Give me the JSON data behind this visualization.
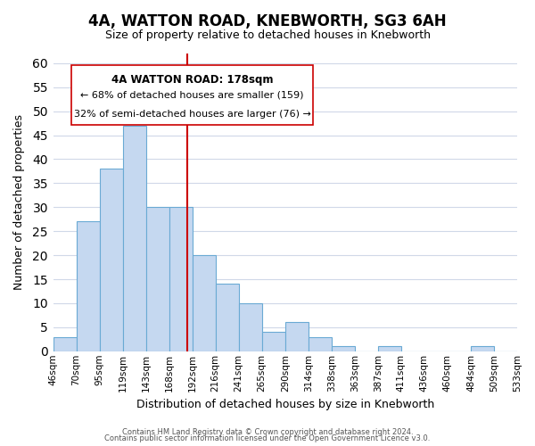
{
  "title": "4A, WATTON ROAD, KNEBWORTH, SG3 6AH",
  "subtitle": "Size of property relative to detached houses in Knebworth",
  "xlabel": "Distribution of detached houses by size in Knebworth",
  "ylabel": "Number of detached properties",
  "bar_color": "#c5d8f0",
  "bar_edge_color": "#6aaad4",
  "background_color": "#ffffff",
  "grid_color": "#d0d8e8",
  "tick_labels": [
    "46sqm",
    "70sqm",
    "95sqm",
    "119sqm",
    "143sqm",
    "168sqm",
    "192sqm",
    "216sqm",
    "241sqm",
    "265sqm",
    "290sqm",
    "314sqm",
    "338sqm",
    "363sqm",
    "387sqm",
    "411sqm",
    "436sqm",
    "460sqm",
    "484sqm",
    "509sqm",
    "533sqm"
  ],
  "values": [
    3,
    27,
    38,
    47,
    30,
    30,
    20,
    14,
    10,
    4,
    6,
    3,
    1,
    0,
    1,
    0,
    0,
    0,
    1,
    0
  ],
  "ylim": [
    0,
    62
  ],
  "yticks": [
    0,
    5,
    10,
    15,
    20,
    25,
    30,
    35,
    40,
    45,
    50,
    55,
    60
  ],
  "vline_x": 5.8,
  "vline_color": "#cc0000",
  "annotation_title": "4A WATTON ROAD: 178sqm",
  "annotation_line1": "← 68% of detached houses are smaller (159)",
  "annotation_line2": "32% of semi-detached houses are larger (76) →",
  "footer1": "Contains HM Land Registry data © Crown copyright and database right 2024.",
  "footer2": "Contains public sector information licensed under the Open Government Licence v3.0."
}
